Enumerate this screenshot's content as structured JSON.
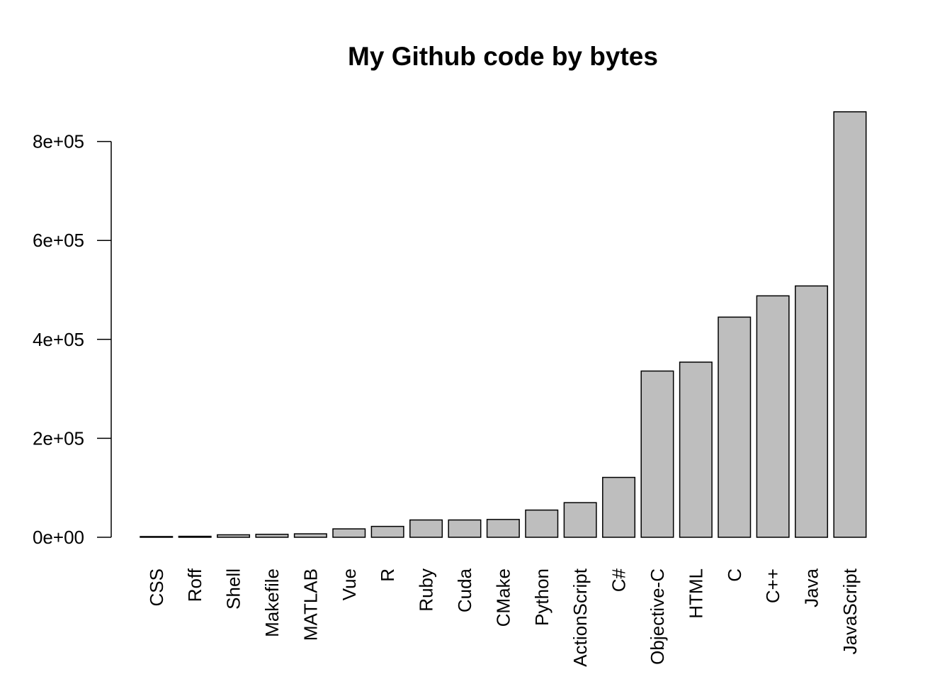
{
  "chart_data": {
    "type": "bar",
    "title": "My Github code by bytes",
    "xlabel": "",
    "ylabel": "",
    "categories": [
      "CSS",
      "Roff",
      "Shell",
      "Makefile",
      "MATLAB",
      "Vue",
      "R",
      "Ruby",
      "Cuda",
      "CMake",
      "Python",
      "ActionScript",
      "C#",
      "Objective-C",
      "HTML",
      "C",
      "C++",
      "Java",
      "JavaScript"
    ],
    "values": [
      1500,
      2000,
      5000,
      6000,
      7000,
      17000,
      22000,
      35000,
      35000,
      36000,
      55000,
      70000,
      121000,
      336000,
      354000,
      445000,
      488000,
      508000,
      860000
    ],
    "ylim": [
      0,
      860000
    ],
    "yticks": [
      0,
      200000,
      400000,
      600000,
      800000
    ],
    "ytick_labels": [
      "0e+00",
      "2e+05",
      "4e+05",
      "6e+05",
      "8e+05"
    ],
    "bar_color": "#bebebe",
    "bar_border_color": "#000000",
    "grid": false,
    "legend": "none"
  }
}
